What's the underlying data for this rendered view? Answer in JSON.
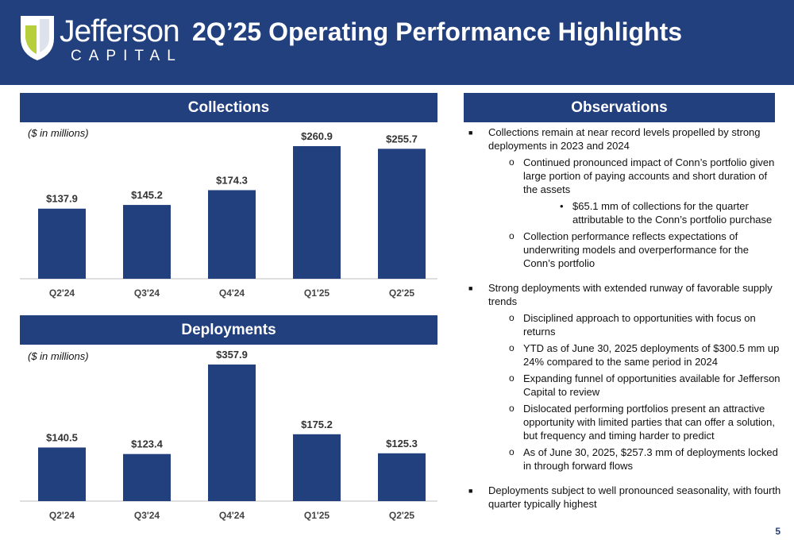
{
  "header": {
    "logo_word": "Jefferson",
    "logo_sub": "CAPITAL",
    "title": "2Q’25 Operating Performance Highlights"
  },
  "colors": {
    "navy": "#223f7e",
    "logo_green": "#b7cf3b"
  },
  "collections": {
    "heading": "Collections",
    "unit_note": "($ in millions)"
  },
  "deployments": {
    "heading": "Deployments",
    "unit_note": "($ in millions)"
  },
  "chart_data": [
    {
      "type": "bar",
      "categories": [
        "Q2'24",
        "Q3'24",
        "Q4'24",
        "Q1'25",
        "Q2'25"
      ],
      "values": [
        137.9,
        145.2,
        174.3,
        260.9,
        255.7
      ],
      "labels": [
        "$137.9",
        "$145.2",
        "$174.3",
        "$260.9",
        "$255.7"
      ],
      "title": "Collections",
      "ylim": [
        0,
        300
      ],
      "grid": false
    },
    {
      "type": "bar",
      "categories": [
        "Q2'24",
        "Q3'24",
        "Q4'24",
        "Q1'25",
        "Q2'25"
      ],
      "values": [
        140.5,
        123.4,
        357.9,
        175.2,
        125.3
      ],
      "labels": [
        "$140.5",
        "$123.4",
        "$357.9",
        "$175.2",
        "$125.3"
      ],
      "title": "Deployments",
      "ylim": [
        0,
        360
      ],
      "grid": false
    }
  ],
  "observations": {
    "heading": "Observations",
    "items": [
      {
        "text": "Collections remain at near record levels propelled by strong deployments in 2023 and 2024",
        "sub": [
          {
            "text": "Continued pronounced impact of Conn’s portfolio given large portion of paying accounts and short duration of the assets",
            "sub": [
              {
                "text": "$65.1 mm of collections for the quarter attributable to the Conn’s portfolio purchase"
              }
            ]
          },
          {
            "text": "Collection performance reflects expectations of underwriting models and overperformance for the Conn’s portfolio"
          }
        ]
      },
      {
        "text": "Strong deployments with extended runway of favorable supply trends",
        "sub": [
          {
            "text": "Disciplined approach to opportunities with focus on returns"
          },
          {
            "text": "YTD as of June 30, 2025 deployments of $300.5 mm up 24% compared to the same period in 2024"
          },
          {
            "text": "Expanding funnel of opportunities available for Jefferson Capital to review"
          },
          {
            "text": "Dislocated performing portfolios present an attractive opportunity with limited parties that can offer a solution, but frequency and timing harder to predict"
          },
          {
            "text": "As of June 30, 2025, $257.3 mm of deployments locked in through forward flows"
          }
        ]
      },
      {
        "text": "Deployments subject to well pronounced seasonality, with fourth quarter typically highest"
      }
    ]
  },
  "page_number": "5"
}
